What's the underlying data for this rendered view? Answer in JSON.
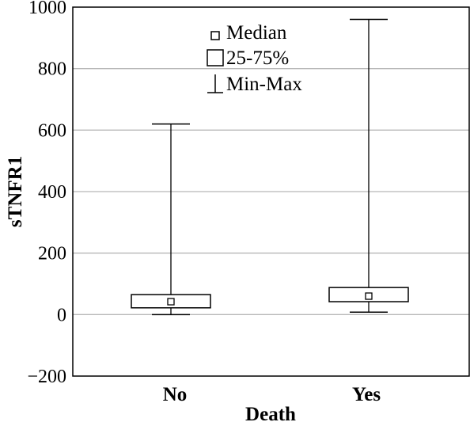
{
  "chart_data": {
    "type": "box",
    "categories": [
      "No",
      "Yes"
    ],
    "boxes": [
      {
        "category": "No",
        "min": 0,
        "q1": 22,
        "median": 42,
        "q3": 65,
        "max": 620
      },
      {
        "category": "Yes",
        "min": 8,
        "q1": 42,
        "median": 60,
        "q3": 88,
        "max": 960
      }
    ],
    "xlabel": "Death",
    "ylabel": "sTNFR1",
    "ylim": [
      -200,
      1000
    ],
    "yticks": [
      -200,
      0,
      200,
      400,
      600,
      800,
      1000
    ],
    "ytick_labels": [
      "−200",
      "0",
      "200",
      "400",
      "600",
      "800",
      "1000"
    ],
    "grid": "horizontal",
    "legend": {
      "position": "top-center",
      "items": [
        {
          "symbol": "median-square",
          "label": "Median"
        },
        {
          "symbol": "box",
          "label": "25-75%"
        },
        {
          "symbol": "whisker",
          "label": "Min-Max"
        }
      ]
    }
  }
}
